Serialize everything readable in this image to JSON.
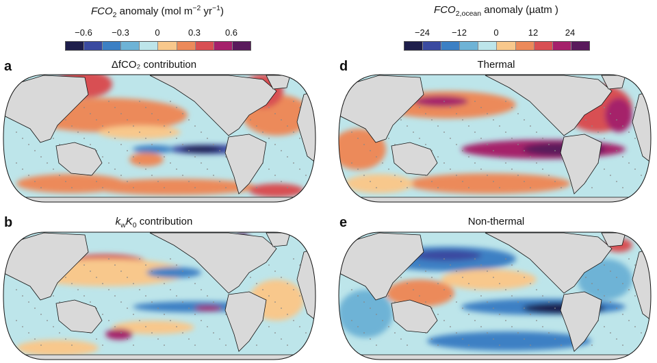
{
  "colorbars": [
    {
      "title_main": "FCO",
      "title_sub": "2",
      "title_rest": " anomaly (mol m",
      "title_sup1": "−2",
      "title_rest2": " yr",
      "title_sup2": "−1",
      "title_end": ")",
      "ticks": [
        "−0.6",
        "−0.3",
        "0",
        "0.3",
        "0.6"
      ]
    },
    {
      "title_main": "FCO",
      "title_sub": "2,ocean",
      "title_rest": " anomaly (µatm )",
      "ticks": [
        "−24",
        "−12",
        "0",
        "12",
        "24"
      ]
    }
  ],
  "colors": [
    "#1e1e4b",
    "#3a4aa0",
    "#3c80c4",
    "#6eb3d6",
    "#bde5ea",
    "#f8c88c",
    "#ec8a5a",
    "#d84f53",
    "#a5206b",
    "#5a1a5c"
  ],
  "land_color": "#d9d9d9",
  "panels": [
    {
      "label": "a",
      "title": "ΔfCO₂ contribution"
    },
    {
      "label": "b",
      "title": "k_wK_0 contribution",
      "title_k": "k",
      "title_w": "w",
      "title_K": "K",
      "title_0": "0",
      "title_rest": " contribution"
    },
    {
      "label": "d",
      "title": "Thermal"
    },
    {
      "label": "e",
      "title": "Non-thermal"
    }
  ]
}
